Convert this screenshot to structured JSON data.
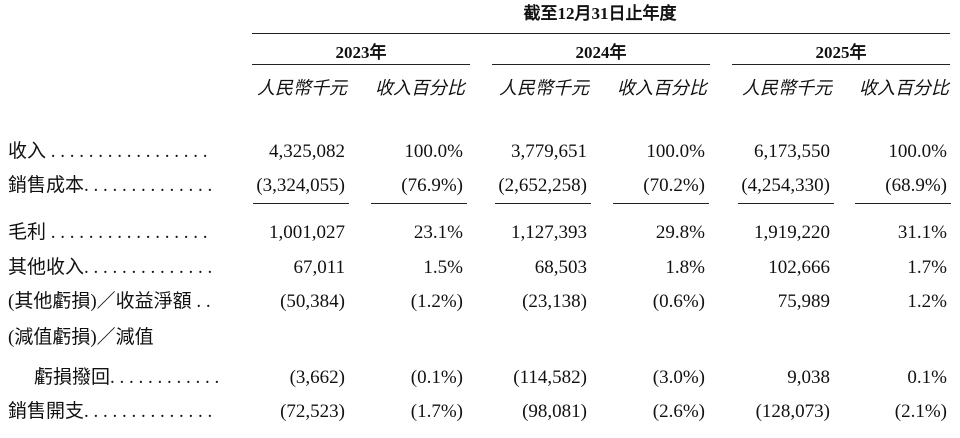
{
  "header": {
    "title": "截至12月31日止年度",
    "years": [
      "2023年",
      "2024年",
      "2025年"
    ],
    "subheaders": [
      "人民幣千元",
      "收入百分比",
      "人民幣千元",
      "收入百分比",
      "人民幣千元",
      "收入百分比"
    ]
  },
  "table": {
    "rows": [
      {
        "label": "收入 . . . . . . . . . . . . . . . . .",
        "cells": [
          "4,325,082",
          "100.0%",
          "3,779,651",
          "100.0%",
          "6,173,550",
          "100.0%"
        ]
      },
      {
        "label": "銷售成本. . . . . . . . . . . . . .",
        "cells": [
          "(3,324,055)",
          "(76.9%)",
          "(2,652,258)",
          "(70.2%)",
          "(4,254,330)",
          "(68.9%)"
        ]
      },
      {
        "label": "毛利 . . . . . . . . . . . . . . . . .",
        "cells": [
          "1,001,027",
          "23.1%",
          "1,127,393",
          "29.8%",
          "1,919,220",
          "31.1%"
        ]
      },
      {
        "label": "其他收入. . . . . . . . . . . . . .",
        "cells": [
          "67,011",
          "1.5%",
          "68,503",
          "1.8%",
          "102,666",
          "1.7%"
        ]
      },
      {
        "label": "(其他虧損)／收益淨額 . .",
        "cells": [
          "(50,384)",
          "(1.2%)",
          "(23,138)",
          "(0.6%)",
          "75,989",
          "1.2%"
        ]
      },
      {
        "label": "(減值虧損)／減值",
        "cells": []
      },
      {
        "label": "虧損撥回. . . . . . . . . . . .",
        "cells": [
          "(3,662)",
          "(0.1%)",
          "(114,582)",
          "(3.0%)",
          "9,038",
          "0.1%"
        ]
      },
      {
        "label": "銷售開支. . . . . . . . . . . . . .",
        "cells": [
          "(72,523)",
          "(1.7%)",
          "(98,081)",
          "(2.6%)",
          "(128,073)",
          "(2.1%)"
        ]
      }
    ]
  }
}
